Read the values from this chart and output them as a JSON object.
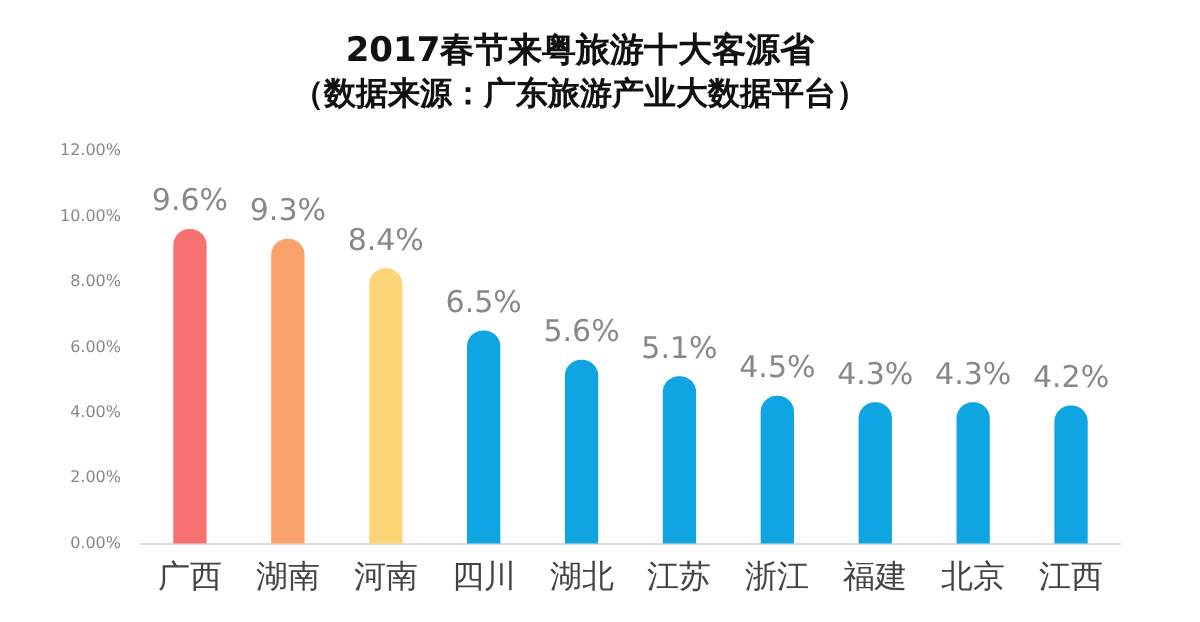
{
  "chart_data": {
    "type": "bar",
    "title": "2017春节来粤旅游十大客源省",
    "subtitle": "（数据来源：广东旅游产业大数据平台）",
    "categories": [
      "广西",
      "湖南",
      "河南",
      "四川",
      "湖北",
      "江苏",
      "浙江",
      "福建",
      "北京",
      "江西"
    ],
    "values": [
      9.6,
      9.3,
      8.4,
      6.5,
      5.6,
      5.1,
      4.5,
      4.3,
      4.3,
      4.2
    ],
    "colors": [
      "#f87171",
      "#f9a26c",
      "#fcd676",
      "#0ea5e2",
      "#0ea5e2",
      "#0ea5e2",
      "#0ea5e2",
      "#0ea5e2",
      "#0ea5e2",
      "#0ea5e2"
    ],
    "value_labels": [
      "9.6%",
      "9.3%",
      "8.4%",
      "6.5%",
      "5.6%",
      "5.1%",
      "4.5%",
      "4.3%",
      "4.3%",
      "4.2%"
    ],
    "ylim": [
      0,
      12
    ],
    "yticks": [
      {
        "value": 0,
        "label": "0.00%"
      },
      {
        "value": 2,
        "label": "2.00%"
      },
      {
        "value": 4,
        "label": "4.00%"
      },
      {
        "value": 6,
        "label": "6.00%"
      },
      {
        "value": 8,
        "label": "8.00%"
      },
      {
        "value": 10,
        "label": "10.00%"
      },
      {
        "value": 12,
        "label": "12.00%"
      }
    ],
    "grid": false,
    "legend": false
  }
}
